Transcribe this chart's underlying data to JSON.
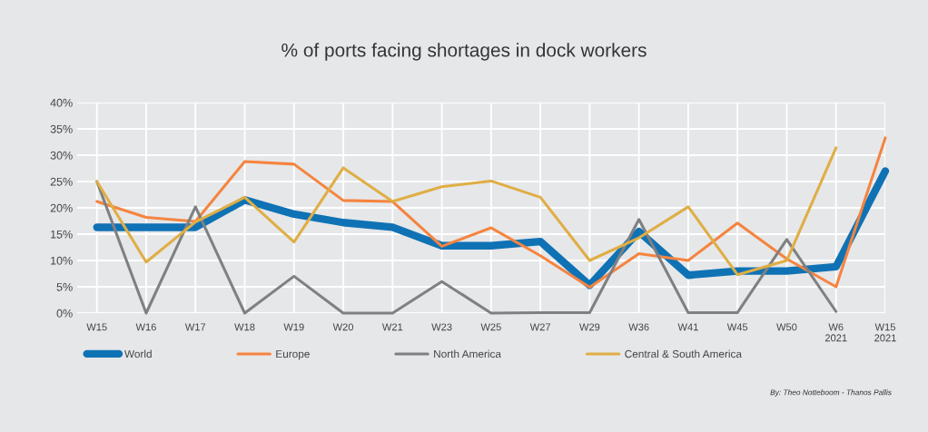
{
  "chart_data": {
    "type": "line",
    "title": "% of ports facing shortages in dock workers",
    "categories": [
      "W15",
      "W16",
      "W17",
      "W18",
      "W19",
      "W20",
      "W21",
      "W23",
      "W25",
      "W27",
      "W29",
      "W36",
      "W41",
      "W45",
      "W50",
      "W6\n2021",
      "W15\n2021"
    ],
    "series": [
      {
        "name": "World",
        "color": "#0f72b5",
        "values": [
          16.3,
          16.3,
          16.3,
          21.5,
          18.8,
          17.2,
          16.3,
          12.8,
          12.8,
          13.6,
          5.3,
          15.5,
          7.2,
          8.0,
          8.0,
          8.8,
          27.0
        ]
      },
      {
        "name": "Europe",
        "color": "#f5843f",
        "values": [
          21.2,
          18.2,
          17.4,
          28.8,
          28.3,
          21.4,
          21.2,
          12.7,
          16.2,
          10.9,
          4.9,
          11.3,
          10.0,
          17.1,
          10.3,
          5.0,
          33.3
        ]
      },
      {
        "name": "North America",
        "color": "#7f8081",
        "values": [
          25.0,
          0.0,
          20.2,
          0.0,
          7.0,
          0.0,
          0.0,
          6.0,
          0.0,
          0.1,
          0.1,
          17.8,
          0.1,
          0.1,
          14.0,
          0.3,
          null
        ]
      },
      {
        "name": "Central & South America",
        "color": "#dfae45",
        "values": [
          25.0,
          9.7,
          17.3,
          22.0,
          13.5,
          27.6,
          21.2,
          24.0,
          25.1,
          22.0,
          10.0,
          14.3,
          20.2,
          7.3,
          10.0,
          31.4,
          null
        ]
      }
    ],
    "ylim": [
      0,
      40
    ],
    "yticks": [
      {
        "value": 0,
        "label": "0%"
      },
      {
        "value": 5,
        "label": "5%"
      },
      {
        "value": 10,
        "label": "10%"
      },
      {
        "value": 15,
        "label": "15%"
      },
      {
        "value": 20,
        "label": "20%"
      },
      {
        "value": 25,
        "label": "25%"
      },
      {
        "value": 30,
        "label": "30%"
      },
      {
        "value": 35,
        "label": "35%"
      },
      {
        "value": 40,
        "label": "40%"
      }
    ],
    "grid": true,
    "legend": "bottom",
    "marker": "none",
    "line_style": "solid",
    "annotations": [
      "By: Theo Notteboom - Thanos Pallis"
    ]
  }
}
